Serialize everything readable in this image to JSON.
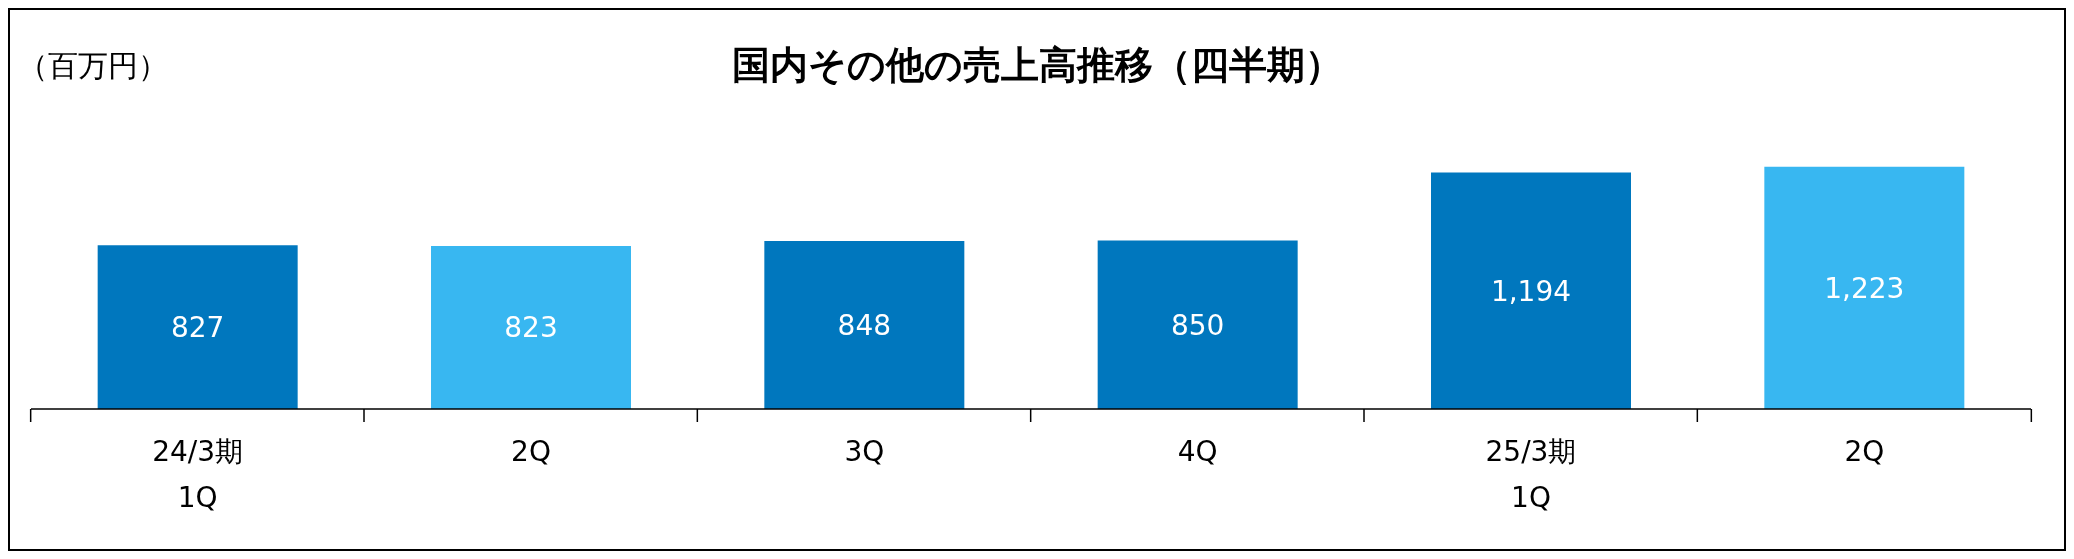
{
  "chart_data": {
    "type": "bar",
    "title": "国内その他の売上高推移（四半期）",
    "ylabel": "（百万円）",
    "categories": [
      "24/3期\n1Q",
      "2Q",
      "3Q",
      "4Q",
      "25/3期\n1Q",
      "2Q"
    ],
    "values": [
      827,
      823,
      848,
      850,
      1194,
      1223
    ],
    "colors": [
      "#0077be",
      "#38b7f1",
      "#0077be",
      "#0077be",
      "#0077be",
      "#38b7f1"
    ],
    "value_labels": [
      "827",
      "823",
      "848",
      "850",
      "1,194",
      "1,223"
    ],
    "grid": false,
    "legend": false
  }
}
